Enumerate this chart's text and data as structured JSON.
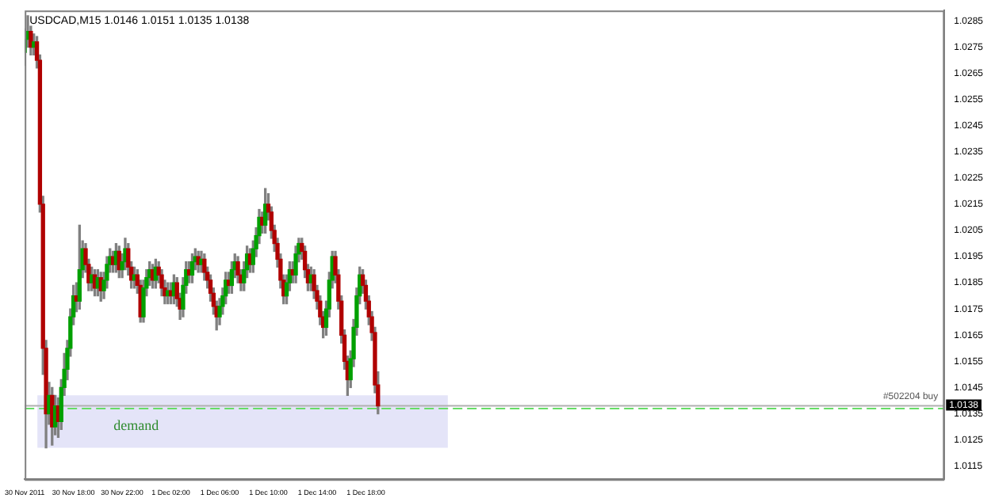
{
  "chart_data": {
    "type": "candlestick",
    "title": "USDCAD,M15 1.0146 1.0151 1.0135 1.0138",
    "x": [
      "2011-11-30T14:00",
      "2011-11-30T14:15",
      "2011-11-30T14:30",
      "2011-11-30T14:45",
      "2011-11-30T15:00",
      "2011-11-30T15:15",
      "2011-11-30T15:30",
      "2011-11-30T15:45",
      "2011-11-30T16:00",
      "2011-11-30T16:15",
      "2011-11-30T16:30",
      "2011-11-30T16:45",
      "2011-11-30T17:00",
      "2011-11-30T17:15",
      "2011-11-30T17:30",
      "2011-11-30T17:45",
      "2011-11-30T18:00",
      "2011-11-30T18:15",
      "2011-11-30T18:30",
      "2011-11-30T18:45",
      "2011-11-30T19:00",
      "2011-11-30T19:15",
      "2011-11-30T19:30",
      "2011-11-30T19:45",
      "2011-11-30T20:00",
      "2011-11-30T20:15",
      "2011-11-30T20:30",
      "2011-11-30T20:45",
      "2011-11-30T21:00",
      "2011-11-30T21:15",
      "2011-11-30T21:30",
      "2011-11-30T21:45",
      "2011-11-30T22:00",
      "2011-11-30T22:15",
      "2011-11-30T22:30",
      "2011-11-30T22:45",
      "2011-11-30T23:00",
      "2011-11-30T23:15",
      "2011-11-30T23:30",
      "2011-11-30T23:45",
      "2011-12-01T00:00",
      "2011-12-01T00:15",
      "2011-12-01T00:30",
      "2011-12-01T00:45",
      "2011-12-01T01:00",
      "2011-12-01T01:15",
      "2011-12-01T01:30",
      "2011-12-01T01:45",
      "2011-12-01T02:00",
      "2011-12-01T02:15",
      "2011-12-01T02:30",
      "2011-12-01T02:45",
      "2011-12-01T03:00",
      "2011-12-01T03:15",
      "2011-12-01T03:30",
      "2011-12-01T03:45",
      "2011-12-01T04:00",
      "2011-12-01T04:15",
      "2011-12-01T04:30",
      "2011-12-01T04:45",
      "2011-12-01T05:00",
      "2011-12-01T05:15",
      "2011-12-01T05:30",
      "2011-12-01T05:45",
      "2011-12-01T06:00",
      "2011-12-01T06:15",
      "2011-12-01T06:30",
      "2011-12-01T06:45",
      "2011-12-01T07:00",
      "2011-12-01T07:15",
      "2011-12-01T07:30",
      "2011-12-01T07:45",
      "2011-12-01T08:00",
      "2011-12-01T08:15",
      "2011-12-01T08:30",
      "2011-12-01T08:45",
      "2011-12-01T09:00",
      "2011-12-01T09:15",
      "2011-12-01T09:30",
      "2011-12-01T09:45",
      "2011-12-01T10:00",
      "2011-12-01T10:15",
      "2011-12-01T10:30",
      "2011-12-01T10:45",
      "2011-12-01T11:00",
      "2011-12-01T11:15",
      "2011-12-01T11:30",
      "2011-12-01T11:45",
      "2011-12-01T12:00",
      "2011-12-01T12:15",
      "2011-12-01T12:30",
      "2011-12-01T12:45",
      "2011-12-01T13:00",
      "2011-12-01T13:15",
      "2011-12-01T13:30",
      "2011-12-01T13:45",
      "2011-12-01T14:00",
      "2011-12-01T14:15",
      "2011-12-01T14:30",
      "2011-12-01T14:45",
      "2011-12-01T15:00",
      "2011-12-01T15:15",
      "2011-12-01T15:30",
      "2011-12-01T15:45",
      "2011-12-01T16:00",
      "2011-12-01T16:15",
      "2011-12-01T16:30",
      "2011-12-01T16:45",
      "2011-12-01T17:00",
      "2011-12-01T17:15",
      "2011-12-01T17:30",
      "2011-12-01T17:45",
      "2011-12-01T18:00",
      "2011-12-01T18:15",
      "2011-12-01T18:30",
      "2011-12-01T18:45",
      "2011-12-01T19:00"
    ],
    "ohlc": [
      [
        1.0273,
        1.0282,
        1.0268,
        1.0278
      ],
      [
        1.0278,
        1.0287,
        1.0275,
        1.0281
      ],
      [
        1.0281,
        1.0283,
        1.0272,
        1.0275
      ],
      [
        1.0275,
        1.028,
        1.0272,
        1.0277
      ],
      [
        1.0277,
        1.0279,
        1.0267,
        1.027
      ],
      [
        1.027,
        1.0272,
        1.0212,
        1.0215
      ],
      [
        1.0215,
        1.0218,
        1.015,
        1.016
      ],
      [
        1.016,
        1.0163,
        1.0122,
        1.0135
      ],
      [
        1.0135,
        1.0147,
        1.0131,
        1.0142
      ],
      [
        1.0142,
        1.0145,
        1.0123,
        1.013
      ],
      [
        1.013,
        1.0142,
        1.0127,
        1.0138
      ],
      [
        1.0138,
        1.0141,
        1.0126,
        1.0132
      ],
      [
        1.0132,
        1.0148,
        1.0129,
        1.0145
      ],
      [
        1.0145,
        1.0158,
        1.0142,
        1.0152
      ],
      [
        1.0152,
        1.0163,
        1.0148,
        1.016
      ],
      [
        1.016,
        1.0175,
        1.0157,
        1.0172
      ],
      [
        1.0172,
        1.0184,
        1.0169,
        1.018
      ],
      [
        1.018,
        1.0185,
        1.0174,
        1.0178
      ],
      [
        1.0178,
        1.0207,
        1.0175,
        1.019
      ],
      [
        1.019,
        1.0201,
        1.0187,
        1.0198
      ],
      [
        1.0198,
        1.02,
        1.0189,
        1.0192
      ],
      [
        1.0192,
        1.0194,
        1.0182,
        1.0185
      ],
      [
        1.0185,
        1.0191,
        1.0182,
        1.0188
      ],
      [
        1.0188,
        1.019,
        1.018,
        1.0183
      ],
      [
        1.0183,
        1.019,
        1.018,
        1.0187
      ],
      [
        1.0187,
        1.0189,
        1.0178,
        1.0182
      ],
      [
        1.0182,
        1.0189,
        1.0179,
        1.0186
      ],
      [
        1.0186,
        1.0195,
        1.0183,
        1.0192
      ],
      [
        1.0192,
        1.0198,
        1.0189,
        1.0195
      ],
      [
        1.0195,
        1.0197,
        1.0189,
        1.0192
      ],
      [
        1.0192,
        1.02,
        1.0189,
        1.0197
      ],
      [
        1.0197,
        1.0199,
        1.0187,
        1.019
      ],
      [
        1.019,
        1.0196,
        1.0187,
        1.0193
      ],
      [
        1.0193,
        1.0202,
        1.019,
        1.0198
      ],
      [
        1.0198,
        1.02,
        1.0188,
        1.0191
      ],
      [
        1.0191,
        1.0193,
        1.0183,
        1.0186
      ],
      [
        1.0186,
        1.0191,
        1.0183,
        1.0188
      ],
      [
        1.0188,
        1.019,
        1.0181,
        1.0184
      ],
      [
        1.0184,
        1.0186,
        1.017,
        1.0172
      ],
      [
        1.0172,
        1.0186,
        1.017,
        1.0183
      ],
      [
        1.0183,
        1.019,
        1.018,
        1.0187
      ],
      [
        1.0187,
        1.0193,
        1.0184,
        1.019
      ],
      [
        1.019,
        1.0192,
        1.0183,
        1.0186
      ],
      [
        1.0186,
        1.0194,
        1.0183,
        1.0191
      ],
      [
        1.0191,
        1.0193,
        1.0185,
        1.0188
      ],
      [
        1.0188,
        1.019,
        1.018,
        1.0183
      ],
      [
        1.0183,
        1.0186,
        1.0177,
        1.018
      ],
      [
        1.018,
        1.0185,
        1.0177,
        1.0182
      ],
      [
        1.0182,
        1.0185,
        1.0177,
        1.018
      ],
      [
        1.018,
        1.0188,
        1.0177,
        1.0185
      ],
      [
        1.0185,
        1.0187,
        1.0176,
        1.0179
      ],
      [
        1.0179,
        1.0181,
        1.0171,
        1.0175
      ],
      [
        1.0175,
        1.0187,
        1.0172,
        1.0184
      ],
      [
        1.0184,
        1.0193,
        1.0181,
        1.019
      ],
      [
        1.019,
        1.0193,
        1.0185,
        1.0188
      ],
      [
        1.0188,
        1.0196,
        1.0185,
        1.0193
      ],
      [
        1.0193,
        1.0198,
        1.019,
        1.0195
      ],
      [
        1.0195,
        1.0197,
        1.0189,
        1.0192
      ],
      [
        1.0192,
        1.0197,
        1.0189,
        1.0194
      ],
      [
        1.0194,
        1.0196,
        1.0186,
        1.0189
      ],
      [
        1.0189,
        1.0191,
        1.0183,
        1.0186
      ],
      [
        1.0186,
        1.0188,
        1.0178,
        1.0181
      ],
      [
        1.0181,
        1.0183,
        1.0173,
        1.0176
      ],
      [
        1.0176,
        1.0178,
        1.0167,
        1.0172
      ],
      [
        1.0172,
        1.0179,
        1.0169,
        1.0176
      ],
      [
        1.0176,
        1.0183,
        1.0173,
        1.018
      ],
      [
        1.018,
        1.0189,
        1.0177,
        1.0186
      ],
      [
        1.0186,
        1.0189,
        1.0181,
        1.0184
      ],
      [
        1.0184,
        1.0193,
        1.0181,
        1.019
      ],
      [
        1.019,
        1.0196,
        1.0187,
        1.0193
      ],
      [
        1.0193,
        1.0195,
        1.0185,
        1.0188
      ],
      [
        1.0188,
        1.019,
        1.0182,
        1.0185
      ],
      [
        1.0185,
        1.0193,
        1.0182,
        1.019
      ],
      [
        1.019,
        1.0199,
        1.0187,
        1.0196
      ],
      [
        1.0196,
        1.0198,
        1.0189,
        1.0192
      ],
      [
        1.0192,
        1.0201,
        1.0189,
        1.0198
      ],
      [
        1.0198,
        1.0206,
        1.0195,
        1.0203
      ],
      [
        1.0203,
        1.0213,
        1.02,
        1.021
      ],
      [
        1.021,
        1.0212,
        1.0204,
        1.0207
      ],
      [
        1.0207,
        1.0221,
        1.0204,
        1.0215
      ],
      [
        1.0215,
        1.0219,
        1.0209,
        1.0212
      ],
      [
        1.0212,
        1.0214,
        1.0202,
        1.0205
      ],
      [
        1.0205,
        1.0207,
        1.0197,
        1.02
      ],
      [
        1.02,
        1.0202,
        1.0191,
        1.0194
      ],
      [
        1.0194,
        1.0196,
        1.0183,
        1.0186
      ],
      [
        1.0186,
        1.0188,
        1.0177,
        1.018
      ],
      [
        1.018,
        1.0188,
        1.0177,
        1.0185
      ],
      [
        1.0185,
        1.0193,
        1.0182,
        1.019
      ],
      [
        1.019,
        1.0193,
        1.0185,
        1.0188
      ],
      [
        1.0188,
        1.0199,
        1.0185,
        1.0196
      ],
      [
        1.0196,
        1.0202,
        1.0193,
        1.02
      ],
      [
        1.02,
        1.0202,
        1.0194,
        1.0197
      ],
      [
        1.0197,
        1.0199,
        1.0187,
        1.019
      ],
      [
        1.019,
        1.0192,
        1.0182,
        1.0185
      ],
      [
        1.0185,
        1.0191,
        1.0182,
        1.0188
      ],
      [
        1.0188,
        1.019,
        1.0179,
        1.0182
      ],
      [
        1.0182,
        1.0184,
        1.0175,
        1.0178
      ],
      [
        1.0178,
        1.018,
        1.0169,
        1.0172
      ],
      [
        1.0172,
        1.0174,
        1.0164,
        1.0168
      ],
      [
        1.0168,
        1.0178,
        1.0165,
        1.0175
      ],
      [
        1.0175,
        1.0189,
        1.0172,
        1.0186
      ],
      [
        1.0186,
        1.0197,
        1.0183,
        1.0195
      ],
      [
        1.0195,
        1.0197,
        1.0185,
        1.0188
      ],
      [
        1.0188,
        1.019,
        1.0175,
        1.0178
      ],
      [
        1.0178,
        1.018,
        1.0162,
        1.0165
      ],
      [
        1.0165,
        1.0167,
        1.0152,
        1.0155
      ],
      [
        1.0155,
        1.0157,
        1.0142,
        1.0148
      ],
      [
        1.0148,
        1.0159,
        1.0145,
        1.0156
      ],
      [
        1.0156,
        1.0171,
        1.0153,
        1.0168
      ],
      [
        1.0168,
        1.0183,
        1.0165,
        1.018
      ],
      [
        1.018,
        1.0191,
        1.0177,
        1.0188
      ],
      [
        1.0188,
        1.019,
        1.0181,
        1.0184
      ],
      [
        1.0184,
        1.0186,
        1.0175,
        1.0178
      ],
      [
        1.0178,
        1.018,
        1.0169,
        1.0172
      ],
      [
        1.0172,
        1.0174,
        1.0163,
        1.0166
      ],
      [
        1.0166,
        1.0168,
        1.0143,
        1.0146
      ],
      [
        1.0146,
        1.0151,
        1.0135,
        1.0138
      ]
    ],
    "colors": [
      "#00a000",
      "#00a000",
      "#b00000",
      "#00a000",
      "#b00000",
      "#b00000",
      "#b00000",
      "#b00000",
      "#00a000",
      "#b00000",
      "#00a000",
      "#b00000",
      "#00a000",
      "#00a000",
      "#00a000",
      "#00a000",
      "#00a000",
      "#b00000",
      "#00a000",
      "#00a000",
      "#b00000",
      "#b00000",
      "#00a000",
      "#b00000",
      "#00a000",
      "#b00000",
      "#00a000",
      "#00a000",
      "#00a000",
      "#b00000",
      "#00a000",
      "#b00000",
      "#00a000",
      "#00a000",
      "#b00000",
      "#b00000",
      "#00a000",
      "#b00000",
      "#b00000",
      "#00a000",
      "#00a000",
      "#00a000",
      "#b00000",
      "#00a000",
      "#b00000",
      "#b00000",
      "#b00000",
      "#00a000",
      "#b00000",
      "#00a000",
      "#b00000",
      "#b00000",
      "#00a000",
      "#00a000",
      "#b00000",
      "#00a000",
      "#00a000",
      "#b00000",
      "#00a000",
      "#b00000",
      "#b00000",
      "#b00000",
      "#b00000",
      "#b00000",
      "#00a000",
      "#00a000",
      "#00a000",
      "#b00000",
      "#00a000",
      "#00a000",
      "#b00000",
      "#b00000",
      "#00a000",
      "#00a000",
      "#b00000",
      "#00a000",
      "#00a000",
      "#00a000",
      "#b00000",
      "#00a000",
      "#b00000",
      "#b00000",
      "#b00000",
      "#b00000",
      "#b00000",
      "#b00000",
      "#00a000",
      "#00a000",
      "#b00000",
      "#00a000",
      "#00a000",
      "#b00000",
      "#b00000",
      "#b00000",
      "#00a000",
      "#b00000",
      "#b00000",
      "#b00000",
      "#b00000",
      "#00a000",
      "#00a000",
      "#00a000",
      "#b00000",
      "#b00000",
      "#b00000",
      "#b00000",
      "#b00000",
      "#00a000",
      "#00a000",
      "#00a000",
      "#00a000",
      "#b00000",
      "#b00000",
      "#b00000",
      "#b00000",
      "#b00000",
      "#b00000"
    ],
    "xlim": [
      "2011-11-30T14:00",
      "2011-12-03T17:30"
    ],
    "xticks": [
      {
        "value": "2011-11-30T14:00",
        "label": "30 Nov 2011"
      },
      {
        "value": "2011-11-30T18:00",
        "label": "30 Nov 18:00"
      },
      {
        "value": "2011-11-30T22:00",
        "label": "30 Nov 22:00"
      },
      {
        "value": "2011-12-01T02:00",
        "label": "1 Dec 02:00"
      },
      {
        "value": "2011-12-01T06:00",
        "label": "1 Dec 06:00"
      },
      {
        "value": "2011-12-01T10:00",
        "label": "1 Dec 10:00"
      },
      {
        "value": "2011-12-01T14:00",
        "label": "1 Dec 14:00"
      },
      {
        "value": "2011-12-01T18:00",
        "label": "1 Dec 18:00"
      }
    ],
    "ylim": [
      1.011,
      1.0289
    ],
    "yticks": [
      1.0115,
      1.0125,
      1.0135,
      1.0145,
      1.0155,
      1.0165,
      1.0175,
      1.0185,
      1.0195,
      1.0205,
      1.0215,
      1.0225,
      1.0235,
      1.0245,
      1.0255,
      1.0265,
      1.0275,
      1.0285
    ],
    "bands": [
      {
        "axis": "y",
        "from": 1.0122,
        "to": 1.0142,
        "label": "demand",
        "color": "#e4e4f8"
      }
    ],
    "ref_lines": [
      {
        "axis": "y",
        "value": 1.0138,
        "label": "1.0138",
        "color": "#b0b0b0",
        "line_style": "solid"
      },
      {
        "axis": "y",
        "value": 1.0137,
        "color": "#66dd66",
        "line_style": "dashed"
      }
    ],
    "annotations": [
      "#502204 buy"
    ],
    "grid": false,
    "legend": false
  }
}
